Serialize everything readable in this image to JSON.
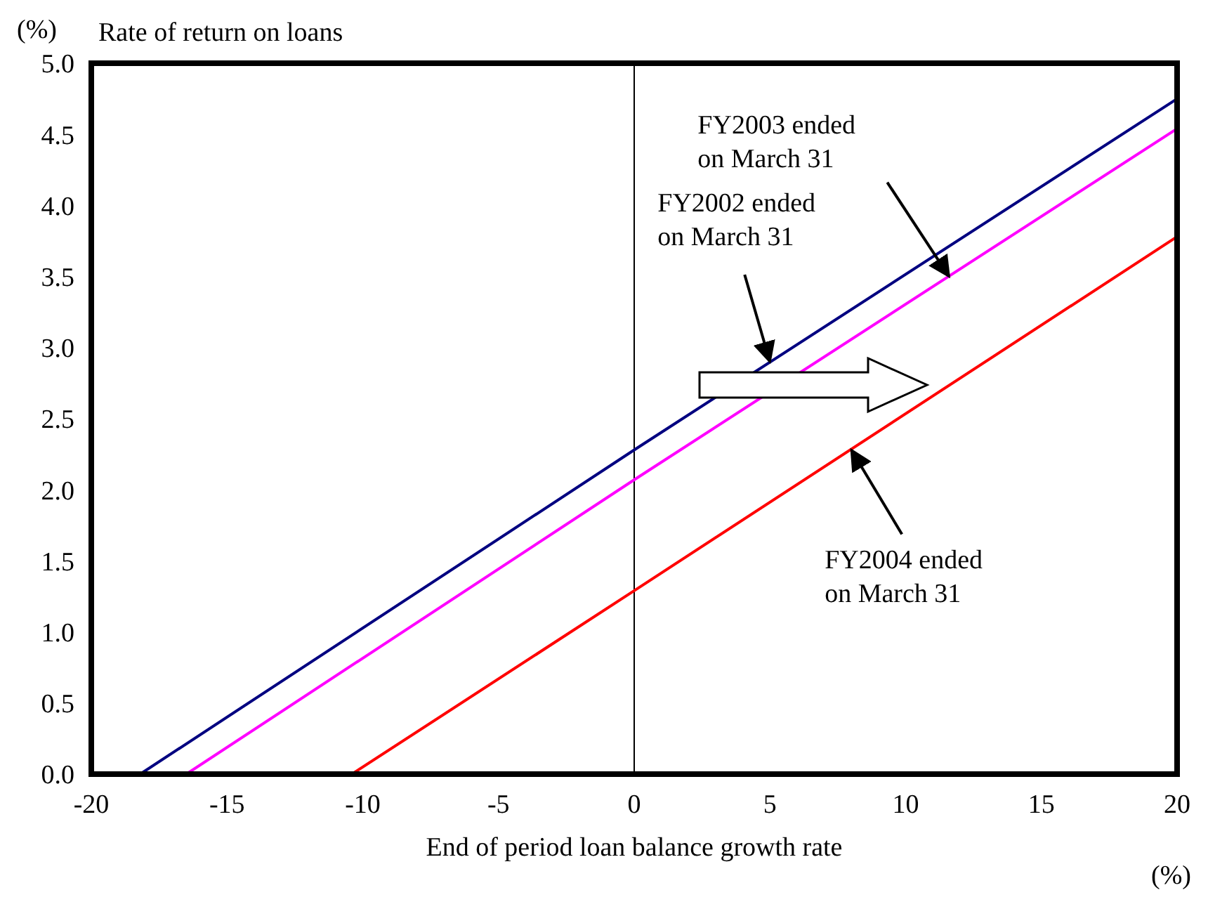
{
  "chart_data": {
    "type": "line",
    "title": "Rate of return on loans",
    "ylabel": "(%)",
    "xlabel": "End of period loan balance growth rate",
    "xlim": [
      -20,
      20
    ],
    "xticks": [
      -20,
      -15,
      -10,
      -5,
      0,
      5,
      10,
      15,
      20
    ],
    "ylim": [
      0,
      5
    ],
    "yticks": [
      {
        "value": 0,
        "label": "0.0"
      },
      {
        "value": 0.5,
        "label": "0.5"
      },
      {
        "value": 1,
        "label": "1.0"
      },
      {
        "value": 1.5,
        "label": "1.5"
      },
      {
        "value": 2,
        "label": "2.0"
      },
      {
        "value": 2.5,
        "label": "2.5"
      },
      {
        "value": 3,
        "label": "3.0"
      },
      {
        "value": 3.5,
        "label": "3.5"
      },
      {
        "value": 4,
        "label": "4.0"
      },
      {
        "value": 4.5,
        "label": "4.5"
      },
      {
        "value": 5,
        "label": "5.0"
      }
    ],
    "grid": false,
    "legend": false,
    "marker": "none",
    "line_style": "solid",
    "ref_lines": [
      {
        "axis": "x",
        "value": 0,
        "color": "#000000"
      }
    ],
    "series": [
      {
        "color": "#000080",
        "x": [
          -18.2,
          0,
          20
        ],
        "values": [
          0,
          2.28,
          4.75
        ]
      },
      {
        "color": "#ff00ff",
        "x": [
          -16.5,
          0,
          20
        ],
        "values": [
          0,
          2.07,
          4.54
        ]
      },
      {
        "color": "#ff0000",
        "x": [
          -10.4,
          0,
          20
        ],
        "values": [
          0,
          1.29,
          3.78
        ]
      }
    ],
    "annotations": [
      {
        "text": "FY2002 ended on March 31",
        "x": 5,
        "y": 2.9
      },
      {
        "text": "FY2003 ended on March 31",
        "x": 11.6,
        "y": 3.5
      },
      {
        "text": "FY2004 ended on March 31",
        "x": 8,
        "y": 2.28
      },
      "(%)"
    ]
  }
}
